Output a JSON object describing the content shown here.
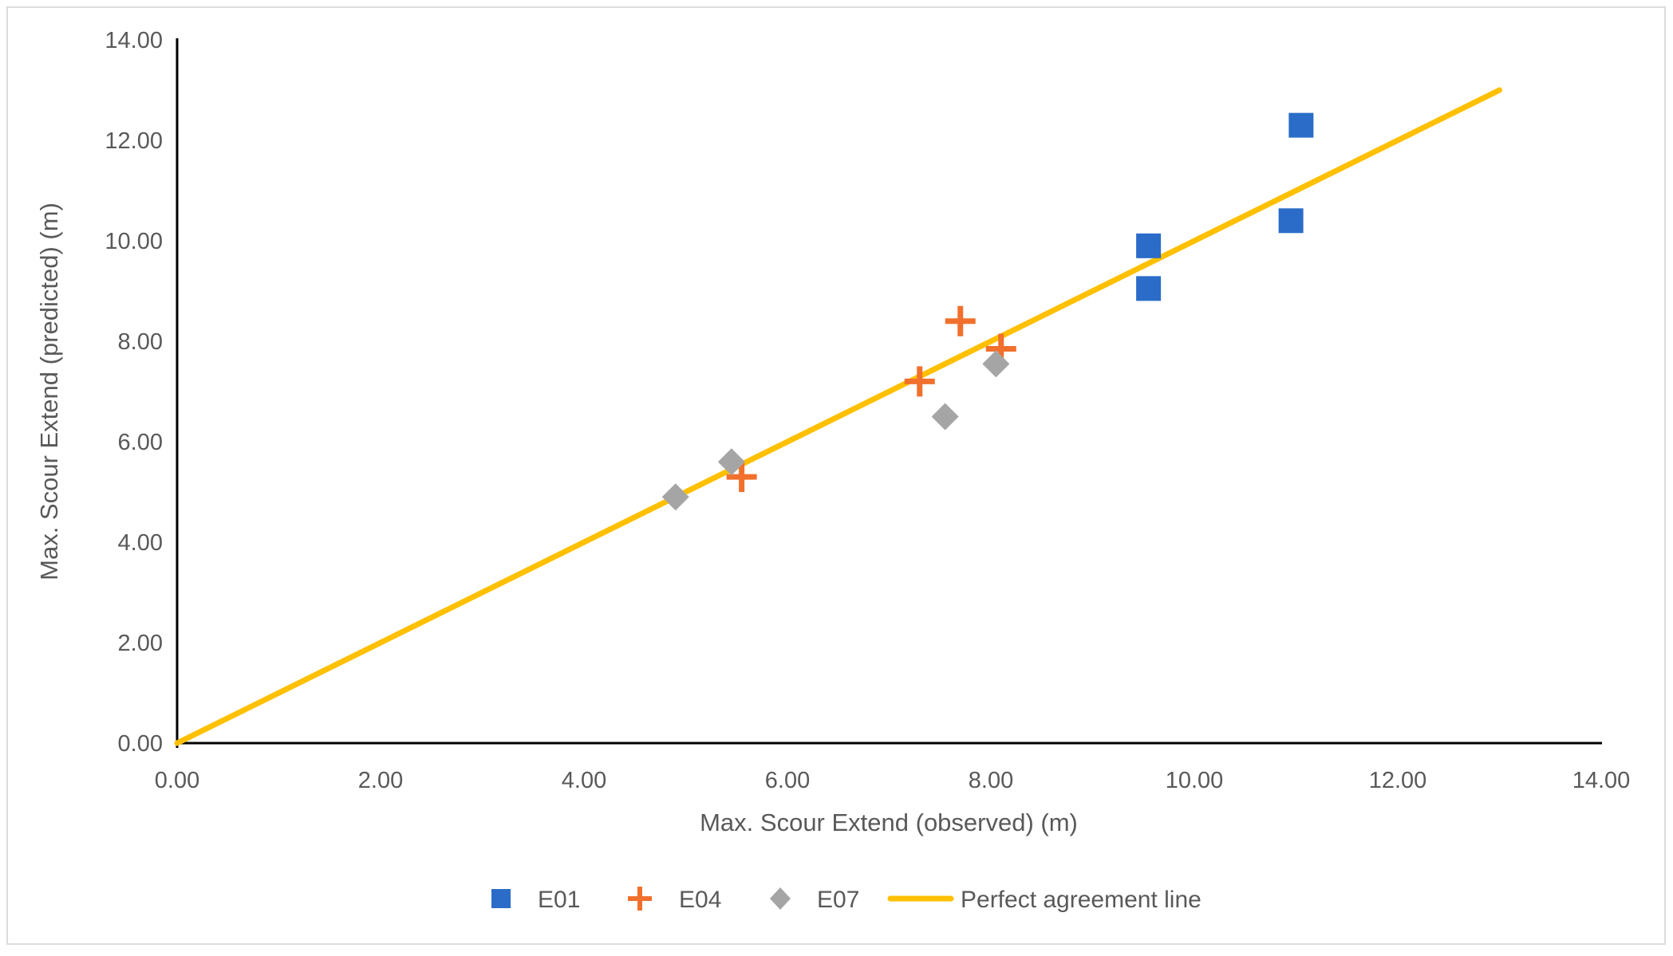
{
  "chart_data": {
    "type": "scatter",
    "title": "",
    "xlabel": "Max. Scour Extend (observed) (m)",
    "ylabel": "Max. Scour Extend (predicted) (m)",
    "xlim": [
      0,
      14
    ],
    "ylim": [
      0,
      14
    ],
    "x_ticks": [
      "0.00",
      "2.00",
      "4.00",
      "6.00",
      "8.00",
      "10.00",
      "12.00",
      "14.00"
    ],
    "y_ticks": [
      "0.00",
      "2.00",
      "4.00",
      "6.00",
      "8.00",
      "10.00",
      "12.00",
      "14.00"
    ],
    "grid": false,
    "legend_position": "bottom",
    "series": [
      {
        "name": "E01",
        "marker": "square",
        "color": "#2A6CC8",
        "points": [
          [
            9.55,
            9.9
          ],
          [
            9.55,
            9.05
          ],
          [
            10.95,
            10.4
          ],
          [
            11.05,
            12.3
          ]
        ]
      },
      {
        "name": "E04",
        "marker": "plus",
        "color": "#F1702D",
        "points": [
          [
            5.55,
            5.3
          ],
          [
            7.3,
            7.2
          ],
          [
            7.7,
            8.4
          ],
          [
            8.1,
            7.85
          ]
        ]
      },
      {
        "name": "E07",
        "marker": "diamond",
        "color": "#A5A5A5",
        "points": [
          [
            4.9,
            4.9
          ],
          [
            5.45,
            5.6
          ],
          [
            7.55,
            6.5
          ],
          [
            8.05,
            7.55
          ]
        ]
      }
    ],
    "line": {
      "name": "Perfect agreement line",
      "color": "#FFC000",
      "from": [
        0,
        0
      ],
      "to": [
        13.0,
        13.0
      ]
    },
    "axis_color": "#000000",
    "text_color": "#595959"
  }
}
